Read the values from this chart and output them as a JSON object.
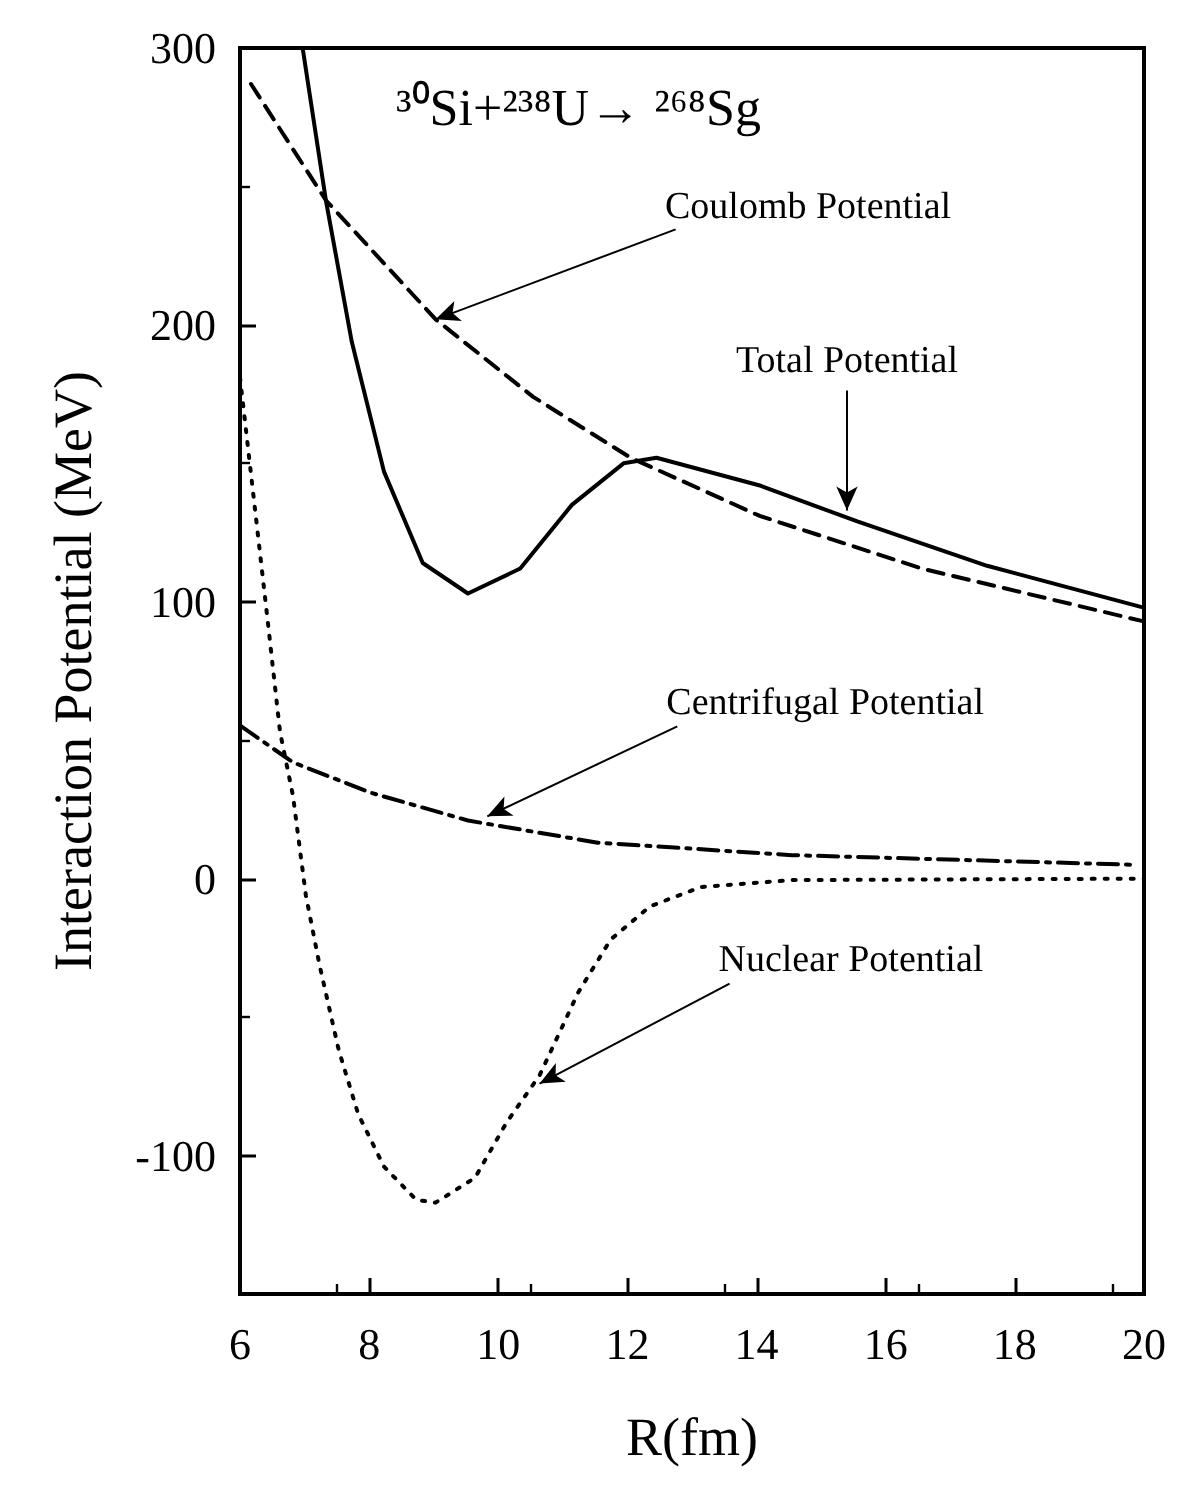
{
  "chart_data": {
    "type": "line",
    "title": "³⁰Si+²³⁸U→ ²⁶⁸Sg",
    "xlabel": "R(fm)",
    "ylabel": "Interaction Potential (MeV)",
    "xlim": [
      6,
      20
    ],
    "xticks": [
      6,
      8,
      10,
      12,
      14,
      16,
      18,
      20
    ],
    "ylim": [
      -150,
      300
    ],
    "yticks": [
      -100,
      0,
      100,
      200,
      300
    ],
    "grid": false,
    "marker": "none",
    "series": [
      {
        "color": "#000000",
        "line_style": "solid",
        "x": [
          6.97,
          7.33,
          7.73,
          8.23,
          8.83,
          9.53,
          10.34,
          11.14,
          11.94,
          12.45,
          14.05,
          15.56,
          17.57,
          19.98
        ],
        "values": [
          300,
          245,
          194,
          147,
          114,
          103,
          112,
          135,
          150,
          152,
          142,
          129,
          113,
          98
        ]
      },
      {
        "color": "#000000",
        "line_style": "dashed",
        "x": [
          6.17,
          7.33,
          9.03,
          10.54,
          12.05,
          14.05,
          16.56,
          19.98
        ],
        "values": [
          287,
          245,
          202,
          174,
          152,
          131,
          112,
          93
        ]
      },
      {
        "color": "#000000",
        "line_style": "dashdot",
        "x": [
          6.02,
          6.82,
          8.03,
          9.53,
          11.54,
          14.55,
          19.88
        ],
        "values": [
          55,
          42,
          31,
          21,
          13,
          8.5,
          5
        ]
      },
      {
        "color": "#000000",
        "line_style": "dotted",
        "x": [
          6.0,
          6.42,
          6.62,
          6.82,
          7.02,
          7.23,
          7.53,
          7.83,
          8.23,
          8.73,
          9.03,
          9.64,
          10.13,
          10.64,
          11.24,
          11.74,
          12.35,
          13.14,
          14.55,
          20.0
        ],
        "values": [
          181,
          95,
          53,
          30,
          -6,
          -31,
          -62,
          -85,
          -104,
          -116,
          -117,
          -108,
          -88,
          -71,
          -41,
          -22,
          -10,
          -3,
          -0.5,
          0
        ]
      }
    ],
    "annotations": [
      {
        "text": "Coulomb Potential",
        "x": 9.03,
        "y": 202
      },
      {
        "text": "Total Potential",
        "x": 15.4,
        "y": 133
      },
      {
        "text": "Centrifugal Potential",
        "x": 9.83,
        "y": 22.5
      },
      {
        "text": "Nuclear Potential",
        "x": 10.64,
        "y": -74
      }
    ]
  }
}
